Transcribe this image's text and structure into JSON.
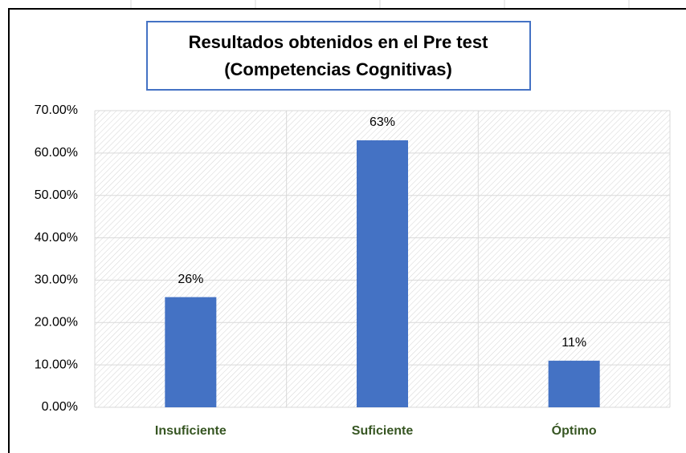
{
  "chart_data": {
    "type": "bar",
    "title": [
      "Resultados obtenidos en el Pre test",
      "(Competencias Cognitivas)"
    ],
    "categories": [
      "Insuficiente",
      "Suficiente",
      "Óptimo"
    ],
    "values": [
      26,
      63,
      11
    ],
    "value_labels": [
      "26%",
      "63%",
      "11%"
    ],
    "color": "#4472c4",
    "ylim": [
      0,
      70
    ],
    "yticks": [
      {
        "value": 0,
        "label": "0.00%"
      },
      {
        "value": 10,
        "label": "10.00%"
      },
      {
        "value": 20,
        "label": "20.00%"
      },
      {
        "value": 30,
        "label": "30.00%"
      },
      {
        "value": 40,
        "label": "40.00%"
      },
      {
        "value": 50,
        "label": "50.00%"
      },
      {
        "value": 60,
        "label": "60.00%"
      },
      {
        "value": 70,
        "label": "70.00%"
      }
    ],
    "grid": true
  }
}
